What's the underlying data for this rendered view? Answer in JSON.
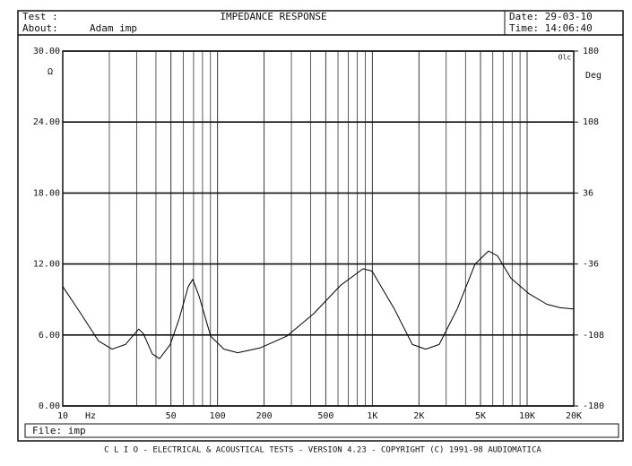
{
  "header": {
    "test_label": "Test :",
    "about_label": "About:",
    "about": "Adam imp",
    "date": "Date: 29-03-10",
    "time": "Time: 14:06:40"
  },
  "chart_data": {
    "type": "line",
    "title": "IMPEDANCE RESPONSE",
    "x_scale": "log",
    "x": [
      10,
      13.1,
      17,
      20.8,
      25.4,
      31,
      33.2,
      37.9,
      42.2,
      49.5,
      56.6,
      64.7,
      69.1,
      75.9,
      90.3,
      110,
      135,
      188,
      280,
      418,
      624,
      871,
      995,
      1388,
      1813,
      2213,
      2704,
      3532,
      4610,
      5628,
      6430,
      7857,
      10250,
      13400,
      16360,
      20000
    ],
    "series": [
      {
        "color": "#000000",
        "values": [
          10.1,
          7.8,
          5.5,
          4.8,
          5.2,
          6.5,
          6.1,
          4.4,
          4.0,
          5.2,
          7.4,
          10.1,
          10.7,
          9.3,
          5.9,
          4.8,
          4.5,
          4.9,
          5.9,
          7.8,
          10.2,
          11.6,
          11.4,
          8.2,
          5.2,
          4.8,
          5.2,
          8.2,
          12.0,
          13.1,
          12.7,
          10.8,
          9.5,
          8.6,
          8.3,
          8.2
        ]
      }
    ],
    "xlim": [
      10,
      20000
    ],
    "xticks": [
      10,
      50,
      100,
      200,
      500,
      {
        "value": 1000,
        "label": "1K"
      },
      {
        "value": 2000,
        "label": "2K"
      },
      {
        "value": 5000,
        "label": "5K"
      },
      {
        "value": 10000,
        "label": "10K"
      },
      {
        "value": 20000,
        "label": "20K"
      }
    ],
    "x_unit": "Hz",
    "ylim": [
      0,
      30
    ],
    "yticks": [
      {
        "value": 0,
        "label": "0.00"
      },
      {
        "value": 6,
        "label": "6.00"
      },
      {
        "value": 12,
        "label": "12.00"
      },
      {
        "value": 18,
        "label": "18.00"
      },
      {
        "value": 24,
        "label": "24.00"
      },
      {
        "value": 30,
        "label": "30.00"
      }
    ],
    "y_unit": "Ω",
    "y2lim": [
      -180,
      180
    ],
    "y2ticks": [
      -180,
      -108,
      -36,
      36,
      108,
      180
    ],
    "y2_unit": "Deg",
    "corner_label": "Olc",
    "grid": true
  },
  "footer": {
    "file": "File: imp",
    "banner": "C L I O  -  ELECTRICAL & ACOUSTICAL TESTS  -  VERSION 4.23  -  COPYRIGHT (C) 1991-98 AUDIOMATICA"
  }
}
